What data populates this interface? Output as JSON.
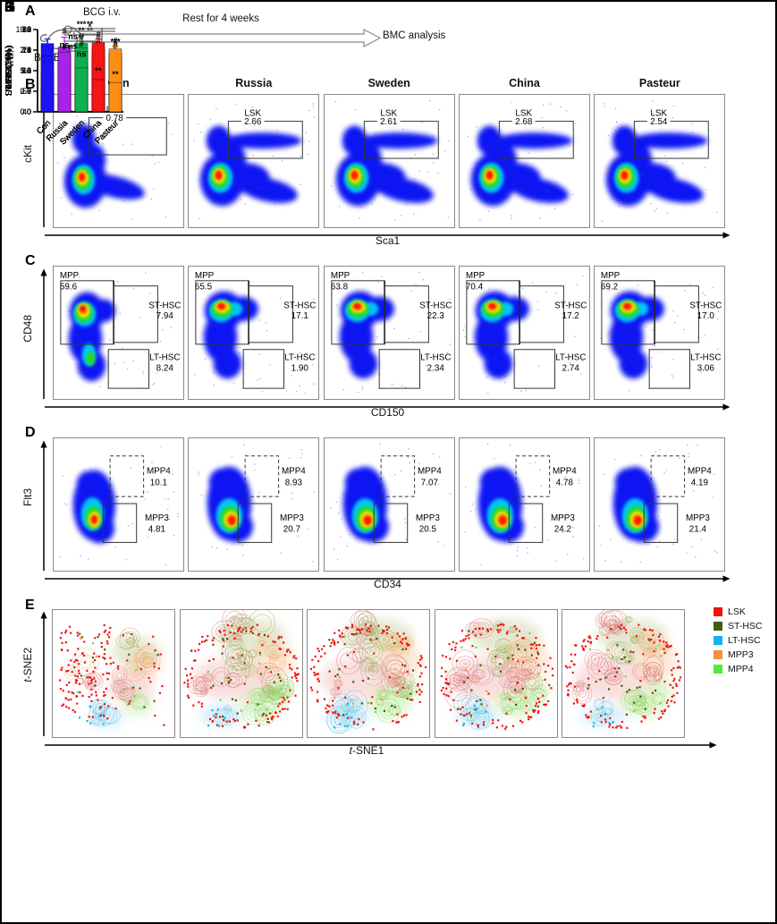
{
  "groups": [
    "Con",
    "Russia",
    "Sweden",
    "China",
    "Pasteur"
  ],
  "bar_colors": [
    "#1d12f4",
    "#a922ec",
    "#0fb14d",
    "#f71414",
    "#ff8e14"
  ],
  "panelA": {
    "label": "A",
    "mouse_label": "BALB/c",
    "injection_label": "BCG i.v.",
    "rest_label": "Rest for 4 weeks",
    "end_label": "BMC analysis"
  },
  "panelB": {
    "label": "B",
    "ylabel": "cKit",
    "xlabel": "Sca1",
    "gate_name": "LSK",
    "values": [
      "0.78",
      "2.66",
      "2.61",
      "2.68",
      "2.54"
    ]
  },
  "panelC": {
    "label": "C",
    "ylabel": "CD48",
    "xlabel": "CD150",
    "gate_names": {
      "mpp": "MPP",
      "st": "ST-HSC",
      "lt": "LT-HSC"
    },
    "plots": [
      {
        "mpp": "59.6",
        "st": "7.94",
        "lt": "8.24"
      },
      {
        "mpp": "65.5",
        "st": "17.1",
        "lt": "1.90"
      },
      {
        "mpp": "63.8",
        "st": "22.3",
        "lt": "2.34"
      },
      {
        "mpp": "70.4",
        "st": "17.2",
        "lt": "2.74"
      },
      {
        "mpp": "69.2",
        "st": "17.0",
        "lt": "3.06"
      }
    ]
  },
  "panelD": {
    "label": "D",
    "ylabel": "Flt3",
    "xlabel": "CD34",
    "gate_names": {
      "mpp4": "MPP4",
      "mpp3": "MPP3"
    },
    "plots": [
      {
        "mpp4": "10.1",
        "mpp3": "4.81"
      },
      {
        "mpp4": "8.93",
        "mpp3": "20.7"
      },
      {
        "mpp4": "7.07",
        "mpp3": "20.5"
      },
      {
        "mpp4": "4.78",
        "mpp3": "24.2"
      },
      {
        "mpp4": "4.19",
        "mpp3": "21.4"
      }
    ]
  },
  "panelE": {
    "label": "E",
    "ylabel": "t-SNE2",
    "xlabel": "t-SNE1",
    "legend": [
      {
        "label": "LSK",
        "color": "#f31111"
      },
      {
        "label": "ST-HSC",
        "color": "#3c5e0e"
      },
      {
        "label": "LT-HSC",
        "color": "#12b4f0"
      },
      {
        "label": "MPP3",
        "color": "#f59240"
      },
      {
        "label": "MPP4",
        "color": "#55e83e"
      }
    ]
  },
  "chart_data": [
    {
      "type": "bar",
      "panel": "F",
      "ylabel": "LSK (%)",
      "categories": [
        "Con",
        "Russia",
        "Sweden",
        "China",
        "Pasteur"
      ],
      "values": [
        0.78,
        2.52,
        2.66,
        2.5,
        2.15
      ],
      "errors": [
        0.03,
        0.38,
        0.07,
        0.2,
        0.38
      ],
      "ylim": [
        0,
        3.2
      ],
      "yticks": [
        0,
        0.8,
        1.6,
        2.4,
        3.2
      ],
      "ytick_labels": [
        "0.0",
        "0.8",
        "1.6",
        "2.4",
        "3.2"
      ],
      "annotations": [
        "",
        "#",
        "#",
        "#",
        "***"
      ],
      "comparisons": []
    },
    {
      "type": "bar",
      "panel": "G",
      "ylabel": "MPP (%)",
      "categories": [
        "Con",
        "Russia",
        "Sweden",
        "China",
        "Pasteur"
      ],
      "values": [
        59.3,
        65.2,
        64.0,
        70.1,
        68.8
      ],
      "errors": [
        1.8,
        0.5,
        1.5,
        0.8,
        1.5
      ],
      "ylim": [
        40,
        80
      ],
      "yticks": [
        40,
        50,
        60,
        70,
        80
      ],
      "ytick_labels": [
        "40",
        "50",
        "60",
        "70",
        "80"
      ],
      "annotations": [
        "",
        "**",
        "**",
        "#",
        "#"
      ],
      "comparisons": [
        {
          "from": 1,
          "to": 4,
          "label": "*"
        },
        {
          "from": 1,
          "to": 3,
          "label": "**"
        },
        {
          "from": 1,
          "to": 2,
          "label": "ns"
        }
      ]
    },
    {
      "type": "bar",
      "panel": "H",
      "ylabel": "ST-HSC (%)",
      "categories": [
        "Con",
        "Russia",
        "Sweden",
        "China",
        "Pasteur"
      ],
      "values": [
        7.1,
        16.0,
        18.7,
        15.5,
        17.0
      ],
      "errors": [
        0.8,
        1.2,
        1.3,
        2.2,
        0.5
      ],
      "ylim": [
        0,
        24
      ],
      "yticks": [
        0,
        6,
        12,
        18,
        24
      ],
      "ytick_labels": [
        "0",
        "6",
        "12",
        "18",
        "24"
      ],
      "annotations": [
        "",
        "#",
        "#",
        "#",
        "#"
      ],
      "comparisons": []
    },
    {
      "type": "bar",
      "panel": "I",
      "ylabel": "LT-HSC (%)",
      "categories": [
        "Con",
        "Russia",
        "Sweden",
        "China",
        "Pasteur"
      ],
      "values": [
        8.3,
        2.1,
        2.5,
        2.4,
        2.7
      ],
      "errors": [
        0.55,
        0.25,
        0.15,
        0.25,
        0.3
      ],
      "ylim": [
        0,
        10
      ],
      "yticks": [
        0,
        2.5,
        5,
        7.5,
        10
      ],
      "ytick_labels": [
        "0.0",
        "2.5",
        "5.0",
        "7.5",
        "10.0"
      ],
      "annotations": [
        "",
        "#",
        "#",
        "#",
        "#"
      ],
      "comparisons": []
    },
    {
      "type": "bar",
      "panel": "J",
      "ylabel": "MPP3 (%)",
      "categories": [
        "Con",
        "Russia",
        "Sweden",
        "China",
        "Pasteur"
      ],
      "values": [
        5.7,
        19.5,
        20.6,
        23.5,
        21.4
      ],
      "errors": [
        0.7,
        1.0,
        0.6,
        1.2,
        1.0
      ],
      "ylim": [
        0,
        28
      ],
      "yticks": [
        0,
        7,
        14,
        21,
        28
      ],
      "ytick_labels": [
        "0",
        "7",
        "14",
        "21",
        "28"
      ],
      "annotations": [
        "",
        "#",
        "#",
        "#",
        "#"
      ],
      "comparisons": [
        {
          "from": 1,
          "to": 3,
          "label": "***"
        },
        {
          "from": 2,
          "to": 3,
          "label": "**"
        }
      ]
    },
    {
      "type": "bar",
      "panel": "K",
      "ylabel": "MPP4 (%)",
      "categories": [
        "Con",
        "Russia",
        "Sweden",
        "China",
        "Pasteur"
      ],
      "values": [
        8.1,
        8.7,
        6.4,
        4.7,
        4.2
      ],
      "errors": [
        1.6,
        0.3,
        1.2,
        0.5,
        0.5
      ],
      "ylim": [
        0,
        12
      ],
      "yticks": [
        0,
        3,
        6,
        9,
        12
      ],
      "ytick_labels": [
        "0",
        "3",
        "6",
        "9",
        "12"
      ],
      "annotations": [
        "",
        "ns",
        "ns",
        "**",
        "**"
      ],
      "comparisons": [
        {
          "from": 1,
          "to": 4,
          "label": "**"
        },
        {
          "from": 1,
          "to": 3,
          "label": "**"
        },
        {
          "from": 1,
          "to": 2,
          "label": "ns"
        }
      ]
    }
  ]
}
